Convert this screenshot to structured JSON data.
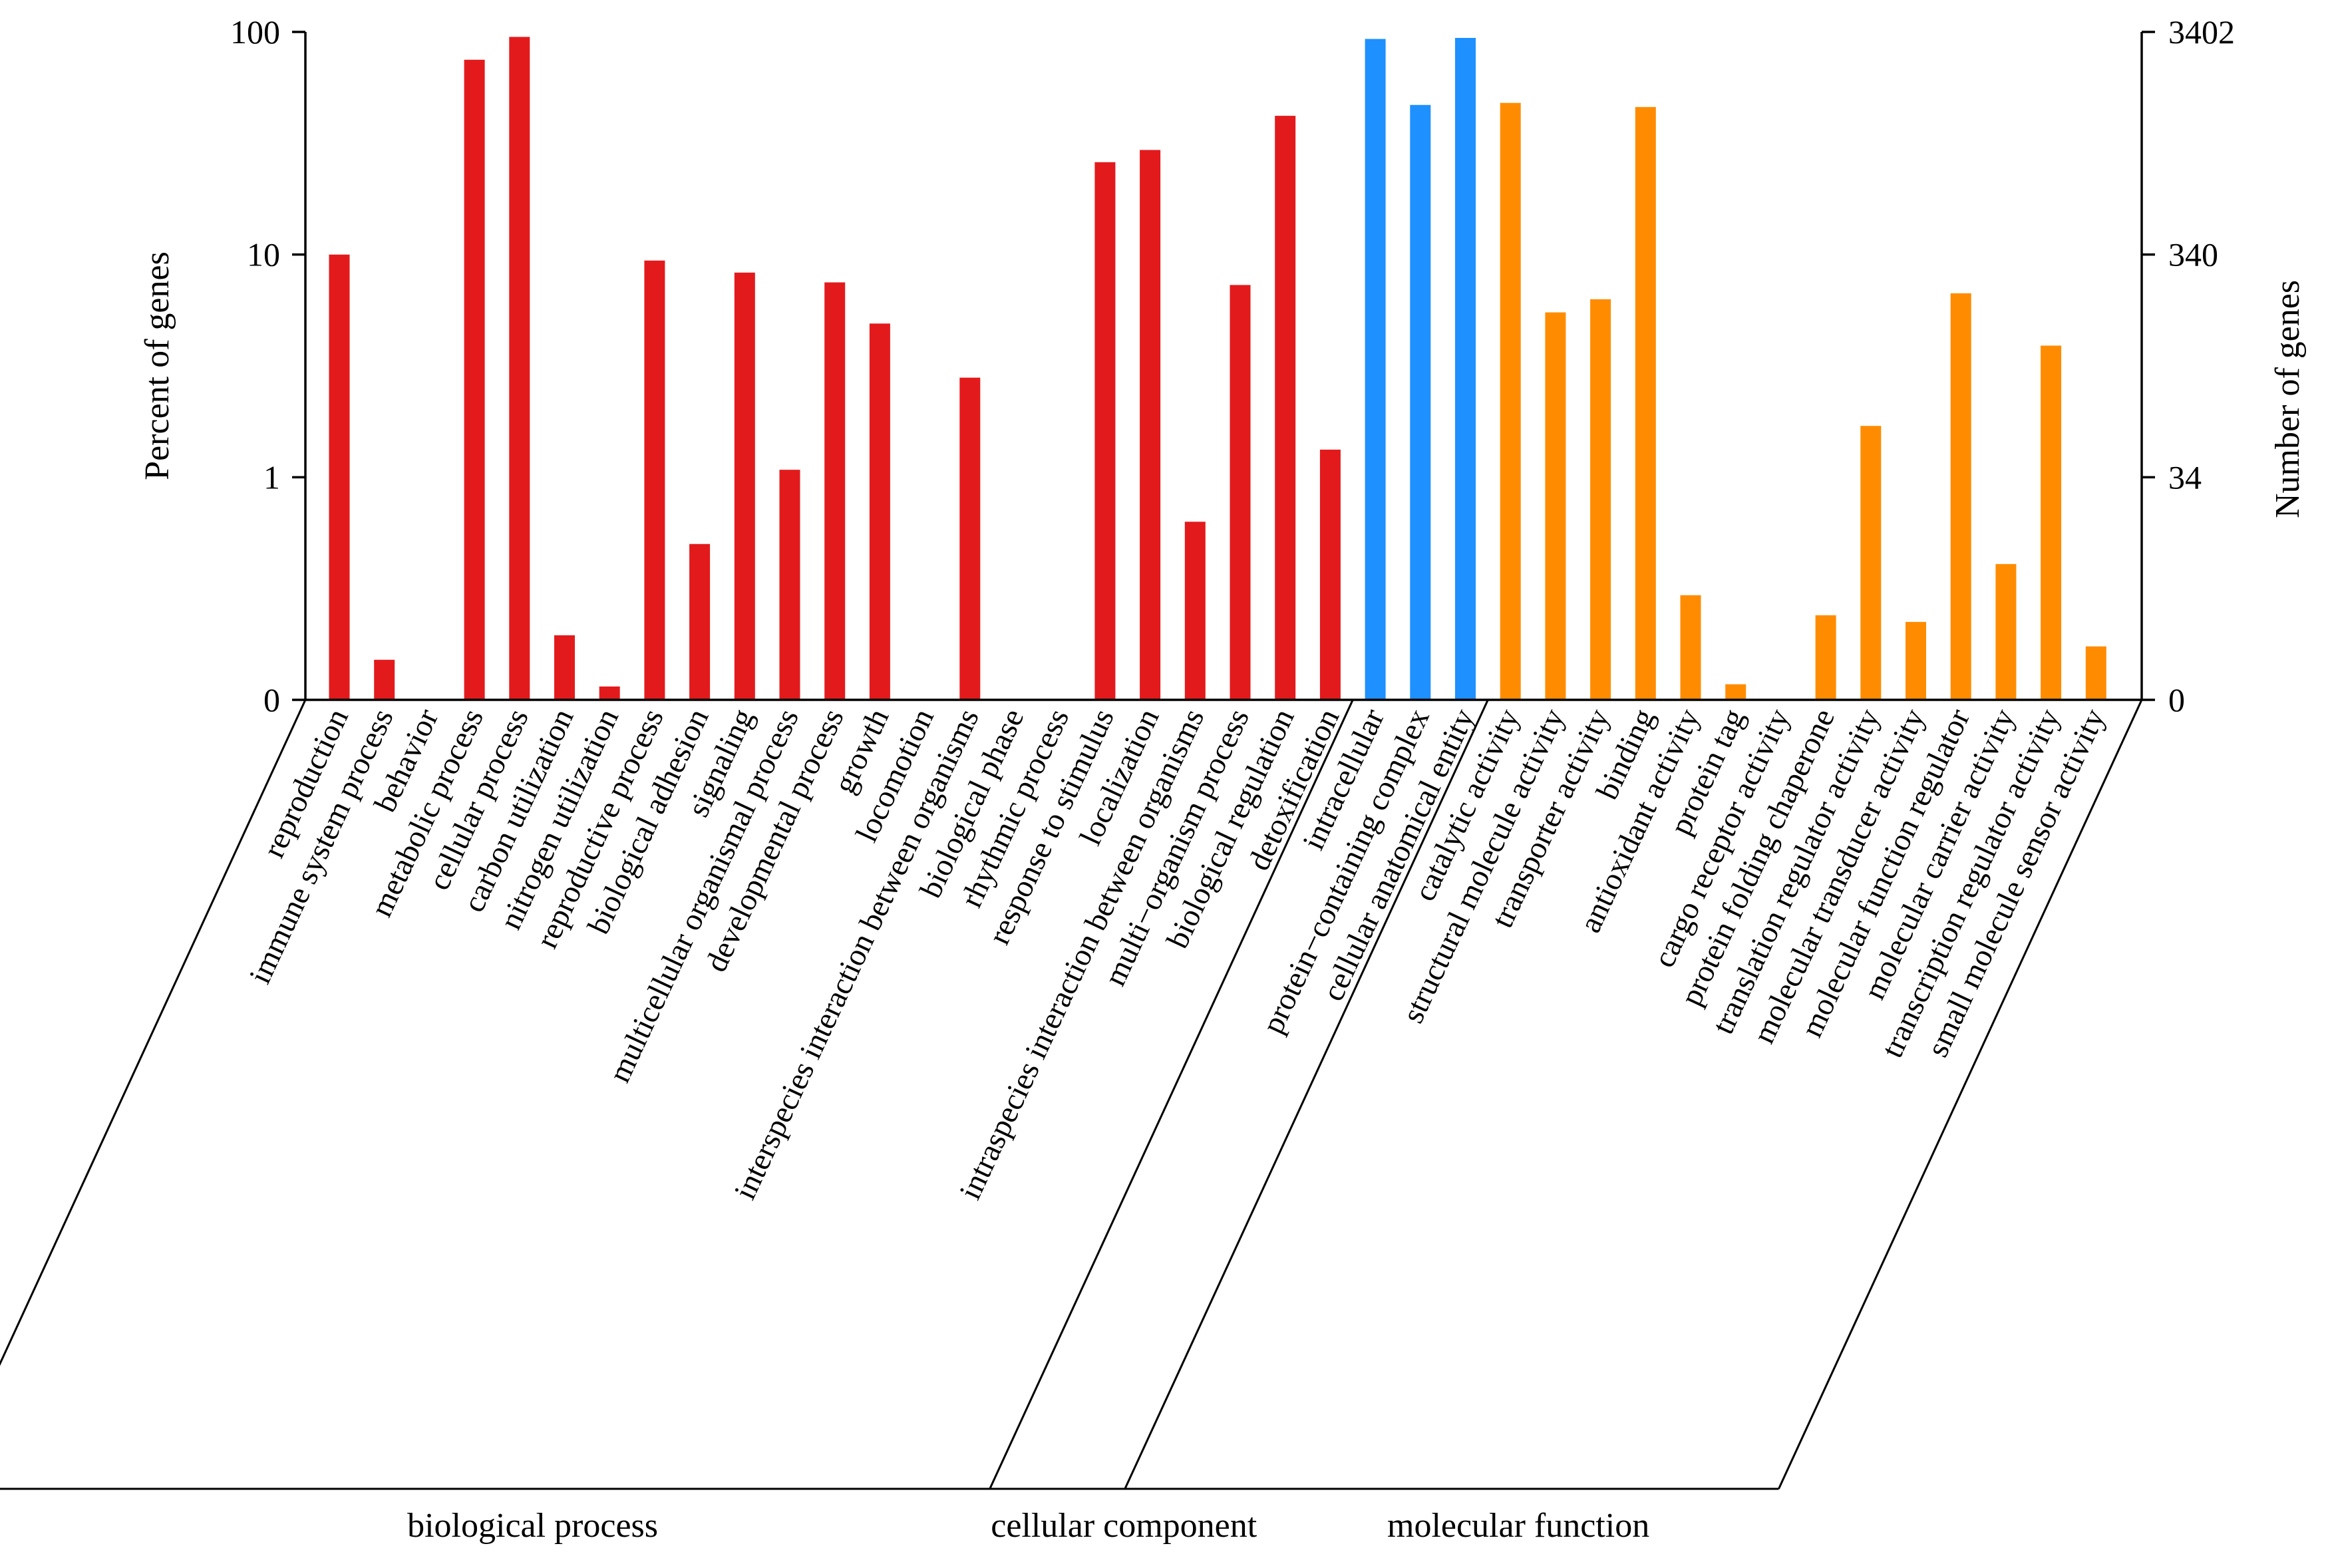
{
  "chart_data": {
    "type": "bar",
    "title": "",
    "ylabel": "Percent of genes",
    "y2label": "Number of genes",
    "yscale": "log-like (0, 1, 10, 100)",
    "yticks": [
      {
        "value": 0,
        "label": "0"
      },
      {
        "value": 1,
        "label": "1"
      },
      {
        "value": 10,
        "label": "10"
      },
      {
        "value": 100,
        "label": "100"
      }
    ],
    "y2ticks": [
      {
        "value": 0,
        "label": "0"
      },
      {
        "value": 34,
        "label": "34"
      },
      {
        "value": 340,
        "label": "340"
      },
      {
        "value": 3402,
        "label": "3402"
      }
    ],
    "groups": [
      {
        "name": "biological process",
        "color": "#e31a1c",
        "start": 0,
        "end": 22
      },
      {
        "name": "cellular component",
        "color": "#1e90ff",
        "start": 23,
        "end": 25
      },
      {
        "name": "molecular function",
        "color": "#ff8c00",
        "start": 26,
        "end": 39
      }
    ],
    "categories": [
      {
        "label": "reproduction",
        "value": 10.0
      },
      {
        "label": "immune system process",
        "value": 0.18
      },
      {
        "label": "behavior",
        "value": 0
      },
      {
        "label": "metabolic process",
        "value": 75
      },
      {
        "label": "cellular process",
        "value": 95
      },
      {
        "label": "carbon utilization",
        "value": 0.29
      },
      {
        "label": "nitrogen utilization",
        "value": 0.06
      },
      {
        "label": "reproductive process",
        "value": 9.4
      },
      {
        "label": "biological adhesion",
        "value": 0.7
      },
      {
        "label": "signaling",
        "value": 8.3
      },
      {
        "label": "multicellular organismal process",
        "value": 1.08
      },
      {
        "label": "developmental process",
        "value": 7.5
      },
      {
        "label": "growth",
        "value": 4.9
      },
      {
        "label": "locomotion",
        "value": 0
      },
      {
        "label": "interspecies interaction between organisms",
        "value": 2.8
      },
      {
        "label": "biological phase",
        "value": 0
      },
      {
        "label": "rhythmic process",
        "value": 0
      },
      {
        "label": "response to stimulus",
        "value": 26
      },
      {
        "label": "localization",
        "value": 29.5
      },
      {
        "label": "intraspecies interaction between organisms",
        "value": 0.8
      },
      {
        "label": "multi−organism process",
        "value": 7.3
      },
      {
        "label": "biological regulation",
        "value": 42
      },
      {
        "label": "detoxification",
        "value": 1.33
      },
      {
        "label": "intracellular",
        "value": 93
      },
      {
        "label": "protein−containing complex",
        "value": 47
      },
      {
        "label": "cellular anatomical entity",
        "value": 94
      },
      {
        "label": "catalytic activity",
        "value": 48
      },
      {
        "label": "structural molecule activity",
        "value": 5.5
      },
      {
        "label": "transporter activity",
        "value": 6.3
      },
      {
        "label": "binding",
        "value": 46
      },
      {
        "label": "antioxidant activity",
        "value": 0.47
      },
      {
        "label": "protein tag",
        "value": 0.07
      },
      {
        "label": "cargo receptor activity",
        "value": 0
      },
      {
        "label": "protein folding chaperone",
        "value": 0.38
      },
      {
        "label": "translation regulator activity",
        "value": 1.7
      },
      {
        "label": "molecular transducer activity",
        "value": 0.35
      },
      {
        "label": "molecular function regulator",
        "value": 6.7
      },
      {
        "label": "molecular carrier activity",
        "value": 0.61
      },
      {
        "label": "transcription regulator activity",
        "value": 3.9
      },
      {
        "label": "small molecule sensor activity",
        "value": 0.24
      }
    ]
  }
}
